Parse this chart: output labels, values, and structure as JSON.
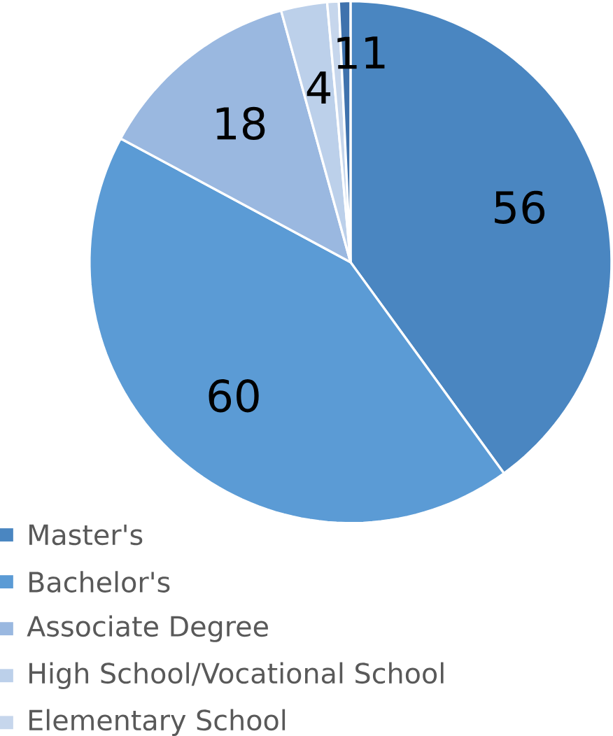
{
  "chart_data": {
    "type": "pie",
    "categories": [
      "Master's",
      "Bachelor's",
      "Associate Degree",
      "High School/Vocational School",
      "Elementary School",
      null
    ],
    "values": [
      56,
      60,
      18,
      4,
      1,
      1
    ],
    "colors": [
      "#4a86c1",
      "#5b9bd5",
      "#9ab8e0",
      "#bcd0ea",
      "#c6d6ec",
      "#3f72ad"
    ],
    "data_labels": true,
    "legend": "bottom"
  }
}
